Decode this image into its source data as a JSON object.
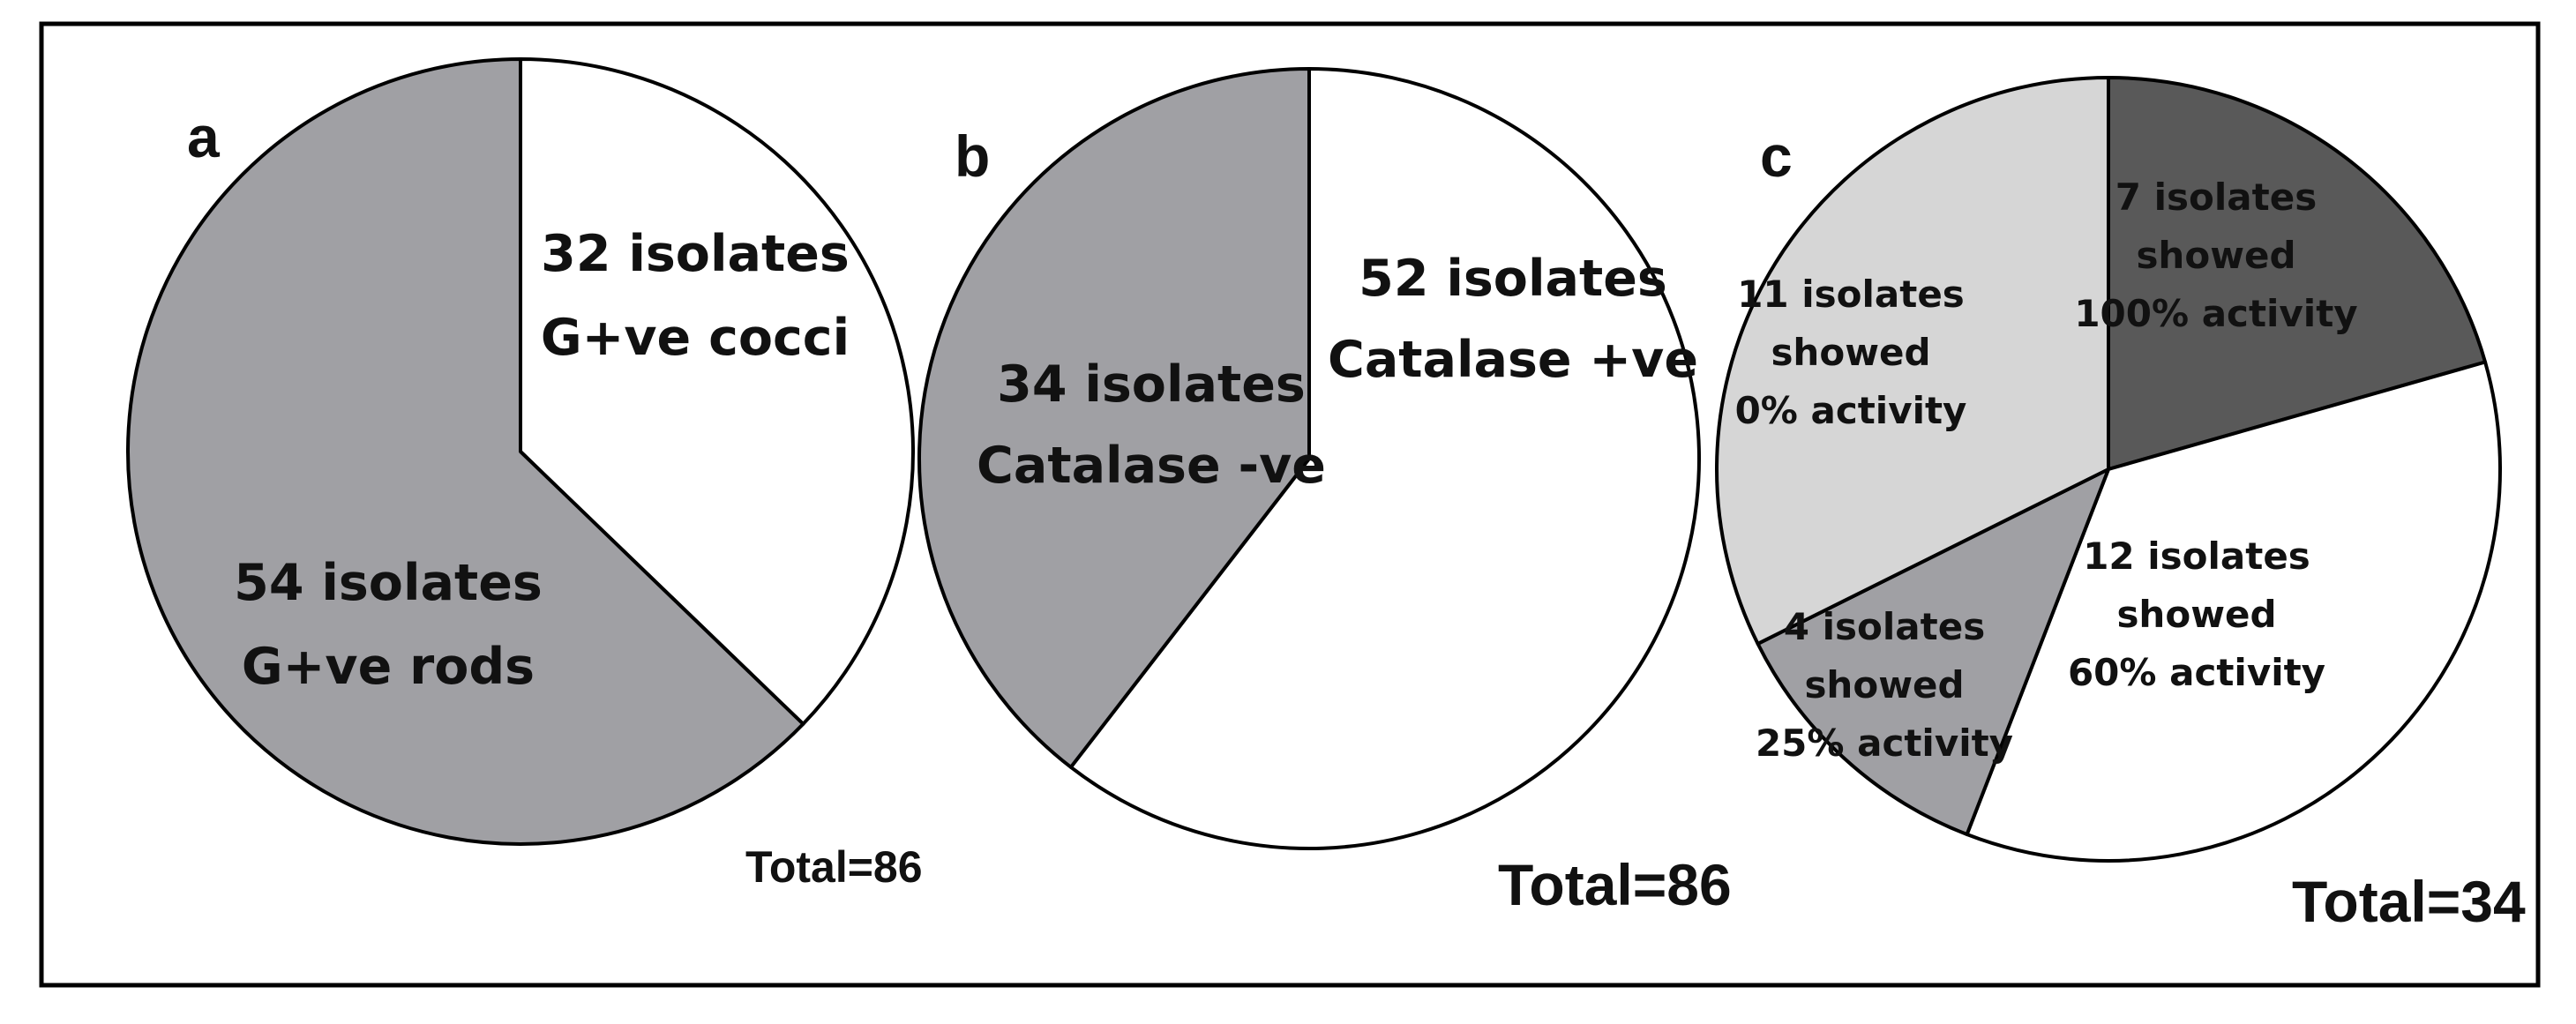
{
  "chart_data": [
    {
      "type": "pie",
      "panel": "a",
      "total_label": "Total=86",
      "slices": [
        {
          "value": 32,
          "label_lines": [
            "32 isolates",
            "G+ve cocci"
          ],
          "color": "#ffffff"
        },
        {
          "value": 54,
          "label_lines": [
            "54 isolates",
            "G+ve rods"
          ],
          "color": "#a0a0a4"
        }
      ]
    },
    {
      "type": "pie",
      "panel": "b",
      "total_label": "Total=86",
      "slices": [
        {
          "value": 52,
          "label_lines": [
            "52 isolates",
            "Catalase +ve"
          ],
          "color": "#ffffff"
        },
        {
          "value": 34,
          "label_lines": [
            "34 isolates",
            "Catalase -ve"
          ],
          "color": "#a0a0a4"
        }
      ]
    },
    {
      "type": "pie",
      "panel": "c",
      "total_label": "Total=34",
      "slices": [
        {
          "value": 7,
          "label_lines": [
            "7 isolates",
            "showed",
            "100% activity"
          ],
          "color": "#595959"
        },
        {
          "value": 12,
          "label_lines": [
            "12 isolates",
            "showed",
            "60% activity"
          ],
          "color": "#ffffff"
        },
        {
          "value": 4,
          "label_lines": [
            "4 isolates",
            "showed",
            "25% activity"
          ],
          "color": "#a0a0a4"
        },
        {
          "value": 11,
          "label_lines": [
            "11 isolates",
            "showed",
            "0%  activity"
          ],
          "color": "#d6d6d6"
        }
      ]
    }
  ]
}
